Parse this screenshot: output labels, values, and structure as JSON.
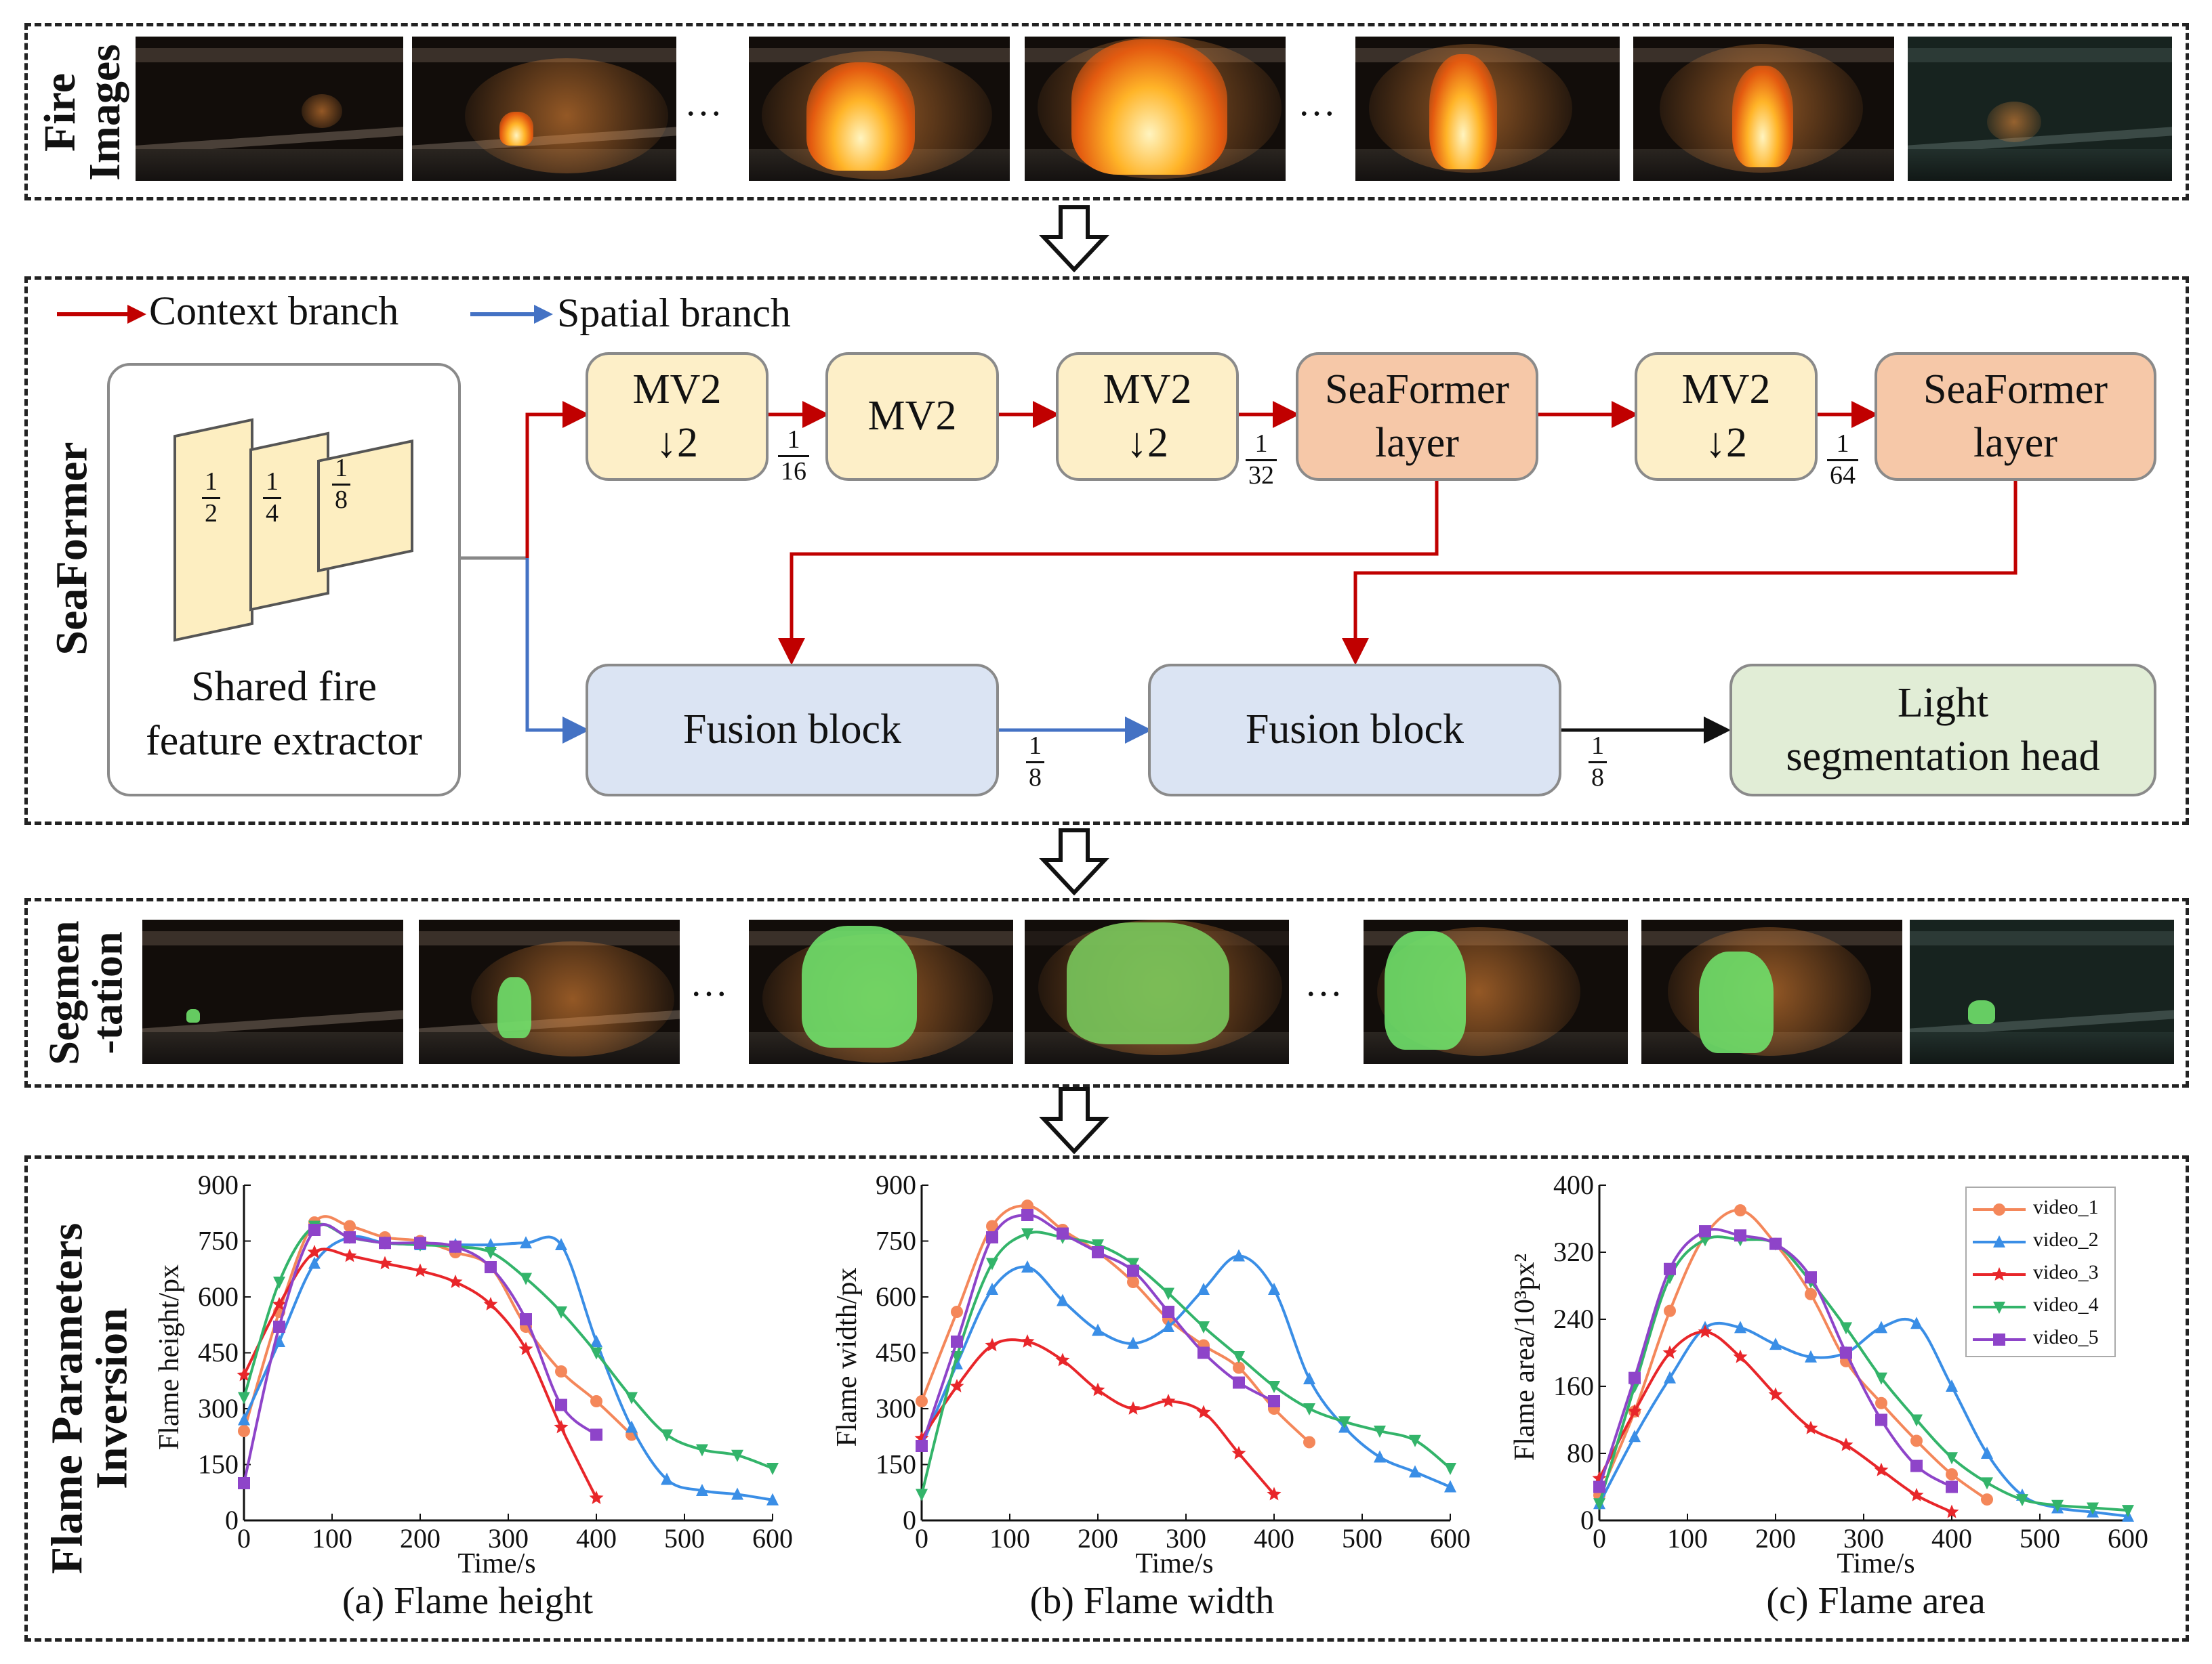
{
  "rows": {
    "fire_images": {
      "label_line1": "Fire",
      "label_line2": "Images"
    },
    "seaformer": {
      "label": "SeaFormer"
    },
    "segmentation": {
      "label_line1": "Segmen",
      "label_line2": "-tation"
    },
    "inversion": {
      "label_line1": "Flame Parameters",
      "label_line2": "Inversion"
    }
  },
  "ellipsis": "…",
  "legend": {
    "context": "Context branch",
    "spatial": "Spatial branch",
    "context_color": "#c00000",
    "spatial_color": "#4472c4"
  },
  "extractor": {
    "label": "Shared fire\nfeature extractor",
    "layers": [
      {
        "num": "1",
        "den": "2"
      },
      {
        "num": "1",
        "den": "4"
      },
      {
        "num": "1",
        "den": "8"
      }
    ]
  },
  "blocks": {
    "mv2_a": "MV2\n↓2",
    "mv2_b": "MV2",
    "mv2_c": "MV2\n↓2",
    "seaformer_a": "SeaFormer\nlayer",
    "mv2_d": "MV2\n↓2",
    "seaformer_b": "SeaFormer\nlayer",
    "fusion_a": "Fusion block",
    "fusion_b": "Fusion block",
    "head": "Light\nsegmentation head"
  },
  "scales": {
    "s16": {
      "num": "1",
      "den": "16"
    },
    "s32": {
      "num": "1",
      "den": "32"
    },
    "s64": {
      "num": "1",
      "den": "64"
    },
    "f1": {
      "num": "1",
      "den": "8"
    },
    "f2": {
      "num": "1",
      "den": "8"
    }
  },
  "chart_data": [
    {
      "type": "line",
      "caption": "(a) Flame height",
      "xlabel": "Time/s",
      "ylabel": "Flame height/px",
      "xlim": [
        0,
        600
      ],
      "ylim": [
        0,
        900
      ],
      "xticks": [
        0,
        100,
        200,
        300,
        400,
        500,
        600
      ],
      "yticks": [
        0,
        150,
        300,
        450,
        600,
        750,
        900
      ],
      "series": [
        {
          "name": "video_1",
          "color": "#f4875a",
          "marker": "circle",
          "x": [
            0,
            40,
            80,
            120,
            160,
            200,
            240,
            280,
            320,
            360,
            400,
            440
          ],
          "y": [
            240,
            560,
            800,
            790,
            760,
            750,
            720,
            680,
            520,
            400,
            320,
            230
          ]
        },
        {
          "name": "video_2",
          "color": "#3a8ee6",
          "marker": "triangle-up",
          "x": [
            0,
            40,
            80,
            120,
            160,
            200,
            240,
            280,
            320,
            360,
            400,
            440,
            480,
            520,
            560,
            600
          ],
          "y": [
            270,
            480,
            690,
            760,
            745,
            740,
            740,
            740,
            745,
            740,
            480,
            250,
            110,
            80,
            70,
            55
          ]
        },
        {
          "name": "video_3",
          "color": "#e8262a",
          "marker": "star",
          "x": [
            0,
            40,
            80,
            120,
            160,
            200,
            240,
            280,
            320,
            360,
            400
          ],
          "y": [
            390,
            580,
            720,
            710,
            690,
            670,
            640,
            580,
            460,
            250,
            60
          ]
        },
        {
          "name": "video_4",
          "color": "#33b46a",
          "marker": "triangle-down",
          "x": [
            0,
            40,
            80,
            120,
            160,
            200,
            240,
            280,
            320,
            360,
            400,
            440,
            480,
            520,
            560,
            600
          ],
          "y": [
            330,
            640,
            790,
            760,
            745,
            740,
            735,
            720,
            650,
            560,
            450,
            330,
            230,
            190,
            175,
            140
          ]
        },
        {
          "name": "video_5",
          "color": "#8e44c9",
          "marker": "square",
          "x": [
            0,
            40,
            80,
            120,
            160,
            200,
            240,
            280,
            320,
            360,
            400
          ],
          "y": [
            100,
            520,
            780,
            760,
            745,
            745,
            735,
            680,
            540,
            310,
            230
          ]
        }
      ]
    },
    {
      "type": "line",
      "caption": "(b) Flame width",
      "xlabel": "Time/s",
      "ylabel": "Flame width/px",
      "xlim": [
        0,
        600
      ],
      "ylim": [
        0,
        900
      ],
      "xticks": [
        0,
        100,
        200,
        300,
        400,
        500,
        600
      ],
      "yticks": [
        0,
        150,
        300,
        450,
        600,
        750,
        900
      ],
      "series": [
        {
          "name": "video_1",
          "color": "#f4875a",
          "marker": "circle",
          "x": [
            0,
            40,
            80,
            120,
            160,
            200,
            240,
            280,
            320,
            360,
            400,
            440
          ],
          "y": [
            320,
            560,
            790,
            845,
            780,
            720,
            640,
            540,
            470,
            410,
            300,
            210
          ]
        },
        {
          "name": "video_2",
          "color": "#3a8ee6",
          "marker": "triangle-up",
          "x": [
            0,
            40,
            80,
            120,
            160,
            200,
            240,
            280,
            320,
            360,
            400,
            440,
            480,
            520,
            560,
            600
          ],
          "y": [
            200,
            420,
            620,
            680,
            590,
            510,
            475,
            520,
            620,
            710,
            620,
            380,
            250,
            170,
            130,
            90
          ]
        },
        {
          "name": "video_3",
          "color": "#e8262a",
          "marker": "star",
          "x": [
            0,
            40,
            80,
            120,
            160,
            200,
            240,
            280,
            320,
            360,
            400
          ],
          "y": [
            220,
            360,
            470,
            480,
            430,
            350,
            300,
            320,
            290,
            180,
            70
          ]
        },
        {
          "name": "video_4",
          "color": "#33b46a",
          "marker": "triangle-down",
          "x": [
            0,
            40,
            80,
            120,
            160,
            200,
            240,
            280,
            320,
            360,
            400,
            440,
            480,
            520,
            560,
            600
          ],
          "y": [
            70,
            440,
            690,
            770,
            760,
            740,
            690,
            610,
            520,
            440,
            360,
            300,
            265,
            240,
            215,
            140
          ]
        },
        {
          "name": "video_5",
          "color": "#8e44c9",
          "marker": "square",
          "x": [
            0,
            40,
            80,
            120,
            160,
            200,
            240,
            280,
            320,
            360,
            400
          ],
          "y": [
            200,
            480,
            760,
            820,
            770,
            720,
            670,
            560,
            450,
            370,
            320
          ]
        }
      ]
    },
    {
      "type": "line",
      "caption": "(c) Flame area",
      "xlabel": "Time/s",
      "ylabel": "Flame area/10³px²",
      "xlim": [
        0,
        600
      ],
      "ylim": [
        0,
        400
      ],
      "xticks": [
        0,
        100,
        200,
        300,
        400,
        500,
        600
      ],
      "yticks": [
        0,
        80,
        160,
        240,
        320,
        400
      ],
      "legend_position": "top-right",
      "series": [
        {
          "name": "video_1",
          "color": "#f4875a",
          "marker": "circle",
          "x": [
            0,
            40,
            80,
            120,
            160,
            200,
            240,
            280,
            320,
            360,
            400,
            440
          ],
          "y": [
            30,
            130,
            250,
            340,
            370,
            330,
            270,
            190,
            140,
            95,
            55,
            25
          ]
        },
        {
          "name": "video_2",
          "color": "#3a8ee6",
          "marker": "triangle-up",
          "x": [
            0,
            40,
            80,
            120,
            160,
            200,
            240,
            280,
            320,
            360,
            400,
            440,
            480,
            520,
            560,
            600
          ],
          "y": [
            20,
            100,
            170,
            230,
            230,
            210,
            195,
            200,
            230,
            235,
            160,
            80,
            30,
            15,
            10,
            5
          ]
        },
        {
          "name": "video_3",
          "color": "#e8262a",
          "marker": "star",
          "x": [
            0,
            40,
            80,
            120,
            160,
            200,
            240,
            280,
            320,
            360,
            400
          ],
          "y": [
            50,
            130,
            200,
            225,
            195,
            150,
            110,
            90,
            60,
            30,
            10
          ]
        },
        {
          "name": "video_4",
          "color": "#33b46a",
          "marker": "triangle-down",
          "x": [
            0,
            40,
            80,
            120,
            160,
            200,
            240,
            280,
            320,
            360,
            400,
            440,
            480,
            520,
            560,
            600
          ],
          "y": [
            20,
            160,
            290,
            335,
            335,
            330,
            285,
            230,
            170,
            120,
            75,
            45,
            25,
            18,
            15,
            12
          ]
        },
        {
          "name": "video_5",
          "color": "#8e44c9",
          "marker": "square",
          "x": [
            0,
            40,
            80,
            120,
            160,
            200,
            240,
            280,
            320,
            360,
            400
          ],
          "y": [
            40,
            170,
            300,
            345,
            340,
            330,
            290,
            200,
            120,
            65,
            40
          ]
        }
      ]
    }
  ]
}
